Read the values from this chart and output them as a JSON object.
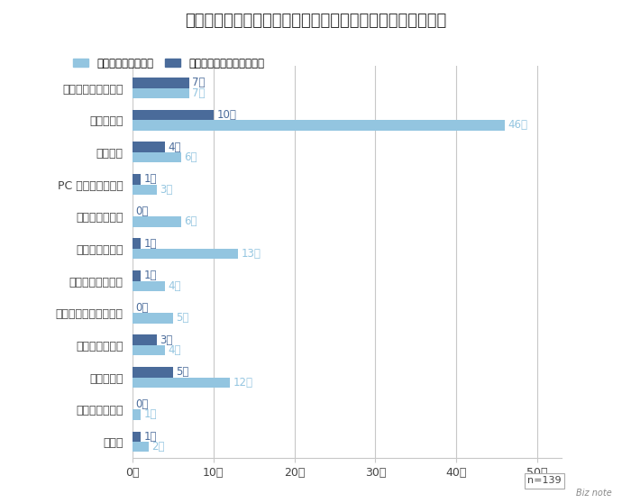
{
  "title": "＜内定から入社までの期間をどのように過ごしましたか？＞",
  "categories": [
    "友人や家族と過ごす",
    "旅行に行く",
    "留学する",
    "PC スキルを上げる",
    "語学学習をする",
    "資格取得の勉強",
    "内定先の企業研究",
    "ビジネスマナーを学ぶ",
    "趣味に没頭する",
    "アルバイト",
    "長期インターン",
    "その他"
  ],
  "values_positive": [
    7,
    46,
    6,
    3,
    6,
    13,
    4,
    5,
    4,
    12,
    1,
    2
  ],
  "values_negative": [
    7,
    10,
    4,
    1,
    0,
    1,
    1,
    0,
    3,
    5,
    0,
    1
  ],
  "color_positive": "#93c5e0",
  "color_negative": "#4a6b9a",
  "label_color_positive": "#93c5e0",
  "label_color_negative": "#4a6b9a",
  "legend_positive": "有意義に過ごせた人",
  "legend_negative": "有意義に過ごせなかった人",
  "xlabel_suffix": "人",
  "xticks": [
    0,
    10,
    20,
    30,
    40,
    50
  ],
  "xlim": [
    0,
    53
  ],
  "note": "n=139",
  "background_color": "#ffffff",
  "grid_color": "#c8c8c8",
  "title_fontsize": 13,
  "label_fontsize": 9,
  "tick_fontsize": 9,
  "bar_height": 0.32,
  "bar_label_fontsize": 8.5
}
